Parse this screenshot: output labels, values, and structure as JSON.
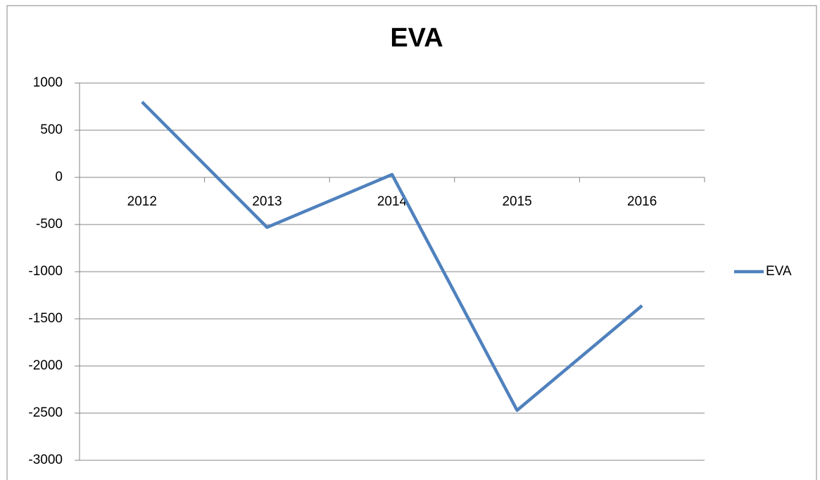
{
  "chart_data": {
    "type": "line",
    "title": "EVA",
    "categories": [
      "2012",
      "2013",
      "2014",
      "2015",
      "2016"
    ],
    "series": [
      {
        "name": "EVA",
        "color": "#4f81bd",
        "values": [
          800,
          -530,
          30,
          -2470,
          -1360
        ]
      }
    ],
    "ylim": [
      -3000,
      1000
    ],
    "yticks": [
      -3000,
      -2500,
      -2000,
      -1500,
      -1000,
      -500,
      0,
      500,
      1000
    ],
    "grid": true,
    "legend": "right"
  }
}
